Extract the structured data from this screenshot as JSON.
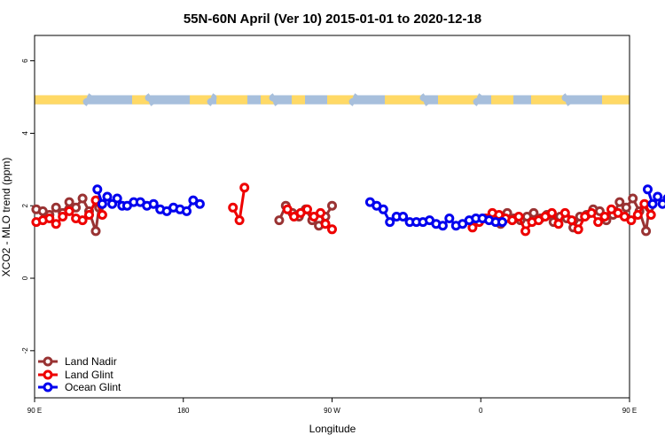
{
  "chart_data": {
    "type": "line",
    "title": "55N-60N April (Ver 10)   2015-01-01 to 2020-12-18",
    "xlabel": "Longitude",
    "ylabel": "XCO2 - MLO trend (ppm)",
    "xlim": [
      90,
      450
    ],
    "ylim": [
      -3.3,
      6.7
    ],
    "x_ticks": [
      {
        "value": 90,
        "label": "90 E"
      },
      {
        "value": 180,
        "label": "180"
      },
      {
        "value": 270,
        "label": "90 W"
      },
      {
        "value": 360,
        "label": "0"
      },
      {
        "value": 450,
        "label": "90 E"
      },
      {
        "value": 540,
        "label": "180"
      }
    ],
    "y_ticks": [
      {
        "value": -2,
        "label": "-2"
      },
      {
        "value": 0,
        "label": "0"
      },
      {
        "value": 2,
        "label": "2"
      },
      {
        "value": 4,
        "label": "4"
      },
      {
        "value": 6,
        "label": "6"
      }
    ],
    "legend_position": "bottom-left",
    "land_ocean_band": {
      "y_bottom": 4.8,
      "y_top": 5.05,
      "land_color": "#FFD966",
      "ocean_color": "#A7BFDC"
    },
    "series": [
      {
        "name": "Land Nadir",
        "color": "#993333",
        "segments": [
          [
            [
              91,
              1.9
            ],
            [
              95,
              1.85
            ],
            [
              99,
              1.75
            ],
            [
              103,
              1.95
            ],
            [
              107,
              1.8
            ],
            [
              111,
              2.1
            ],
            [
              115,
              1.95
            ],
            [
              119,
              2.2
            ],
            [
              123,
              1.85
            ],
            [
              127,
              1.3
            ],
            [
              129,
              1.95
            ]
          ],
          [
            [
              238,
              1.6
            ],
            [
              242,
              2.0
            ],
            [
              246,
              1.8
            ],
            [
              250,
              1.7
            ],
            [
              254,
              1.9
            ],
            [
              258,
              1.6
            ],
            [
              262,
              1.45
            ],
            [
              266,
              1.7
            ],
            [
              270,
              2.0
            ]
          ],
          [
            [
              372,
              1.5
            ],
            [
              376,
              1.8
            ],
            [
              380,
              1.65
            ],
            [
              384,
              1.6
            ],
            [
              388,
              1.7
            ],
            [
              392,
              1.8
            ],
            [
              396,
              1.65
            ],
            [
              400,
              1.75
            ],
            [
              404,
              1.55
            ],
            [
              408,
              1.7
            ],
            [
              412,
              1.65
            ],
            [
              416,
              1.4
            ],
            [
              420,
              1.7
            ],
            [
              424,
              1.75
            ],
            [
              428,
              1.9
            ],
            [
              432,
              1.85
            ],
            [
              436,
              1.6
            ],
            [
              440,
              1.75
            ],
            [
              444,
              2.1
            ],
            [
              448,
              1.95
            ],
            [
              452,
              2.2
            ],
            [
              456,
              1.85
            ],
            [
              460,
              1.3
            ],
            [
              462,
              1.95
            ]
          ]
        ]
      },
      {
        "name": "Land Glint",
        "color": "#EE0000",
        "segments": [
          [
            [
              91,
              1.55
            ],
            [
              95,
              1.6
            ],
            [
              99,
              1.65
            ],
            [
              103,
              1.5
            ],
            [
              107,
              1.7
            ],
            [
              111,
              1.85
            ],
            [
              115,
              1.65
            ],
            [
              119,
              1.6
            ],
            [
              123,
              1.75
            ],
            [
              127,
              2.15
            ],
            [
              131,
              1.75
            ]
          ],
          [
            [
              210,
              1.95
            ],
            [
              214,
              1.6
            ],
            [
              217,
              2.5
            ]
          ],
          [
            [
              243,
              1.9
            ],
            [
              247,
              1.7
            ],
            [
              251,
              1.8
            ],
            [
              255,
              1.9
            ],
            [
              259,
              1.7
            ],
            [
              263,
              1.8
            ],
            [
              266,
              1.5
            ],
            [
              270,
              1.35
            ]
          ],
          [
            [
              355,
              1.4
            ],
            [
              359,
              1.55
            ],
            [
              363,
              1.65
            ],
            [
              367,
              1.8
            ],
            [
              371,
              1.75
            ],
            [
              375,
              1.65
            ],
            [
              379,
              1.6
            ],
            [
              383,
              1.7
            ],
            [
              387,
              1.3
            ],
            [
              391,
              1.55
            ],
            [
              395,
              1.6
            ],
            [
              399,
              1.7
            ],
            [
              403,
              1.8
            ],
            [
              407,
              1.5
            ],
            [
              411,
              1.8
            ],
            [
              415,
              1.6
            ],
            [
              419,
              1.35
            ],
            [
              423,
              1.7
            ],
            [
              427,
              1.8
            ],
            [
              431,
              1.55
            ],
            [
              435,
              1.7
            ],
            [
              439,
              1.9
            ],
            [
              443,
              1.8
            ],
            [
              447,
              1.7
            ],
            [
              451,
              1.6
            ],
            [
              455,
              1.75
            ],
            [
              459,
              2.05
            ],
            [
              463,
              1.75
            ]
          ]
        ]
      },
      {
        "name": "Ocean Glint",
        "color": "#0000EE",
        "segments": [
          [
            [
              128,
              2.45
            ],
            [
              131,
              2.05
            ],
            [
              134,
              2.25
            ],
            [
              137,
              2.05
            ],
            [
              140,
              2.2
            ],
            [
              143,
              2.0
            ],
            [
              146,
              2.0
            ],
            [
              150,
              2.1
            ],
            [
              154,
              2.1
            ],
            [
              158,
              2.0
            ],
            [
              162,
              2.05
            ],
            [
              166,
              1.9
            ],
            [
              170,
              1.85
            ],
            [
              174,
              1.95
            ],
            [
              178,
              1.9
            ],
            [
              182,
              1.85
            ],
            [
              186,
              2.15
            ],
            [
              190,
              2.05
            ]
          ],
          [
            [
              293,
              2.1
            ],
            [
              297,
              2.0
            ],
            [
              301,
              1.9
            ],
            [
              305,
              1.55
            ],
            [
              309,
              1.7
            ],
            [
              313,
              1.7
            ],
            [
              317,
              1.55
            ],
            [
              321,
              1.55
            ],
            [
              325,
              1.55
            ],
            [
              329,
              1.6
            ],
            [
              333,
              1.5
            ],
            [
              337,
              1.45
            ],
            [
              341,
              1.65
            ],
            [
              345,
              1.45
            ],
            [
              349,
              1.5
            ],
            [
              353,
              1.6
            ],
            [
              357,
              1.65
            ],
            [
              361,
              1.65
            ],
            [
              365,
              1.6
            ],
            [
              369,
              1.55
            ],
            [
              373,
              1.55
            ]
          ],
          [
            [
              461,
              2.45
            ],
            [
              464,
              2.05
            ],
            [
              467,
              2.25
            ],
            [
              470,
              2.05
            ],
            [
              473,
              2.2
            ],
            [
              476,
              2.0
            ],
            [
              479,
              2.0
            ],
            [
              483,
              2.1
            ],
            [
              487,
              2.1
            ],
            [
              491,
              2.0
            ],
            [
              495,
              2.05
            ]
          ]
        ]
      }
    ]
  }
}
